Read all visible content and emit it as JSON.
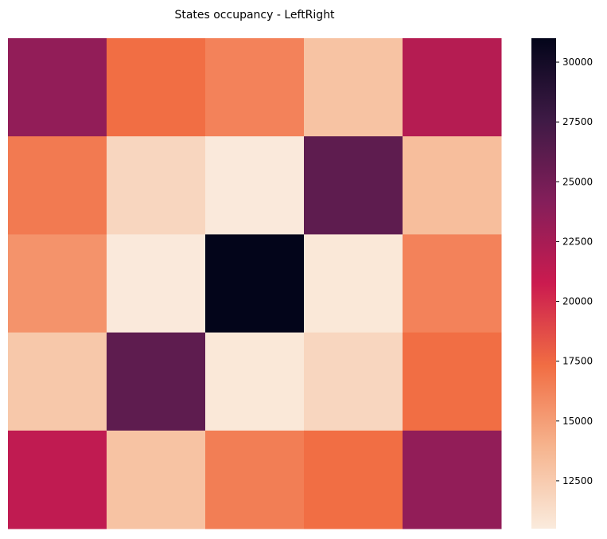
{
  "chart_data": {
    "type": "heatmap",
    "title": "States occupancy - LeftRight",
    "xlabel": "",
    "ylabel": "",
    "rows": 5,
    "cols": 5,
    "values": [
      [
        23500,
        17300,
        16300,
        13000,
        21800
      ],
      [
        16700,
        11800,
        10600,
        26000,
        13300
      ],
      [
        15500,
        10600,
        31000,
        10700,
        16300
      ],
      [
        12700,
        26000,
        10700,
        11800,
        17300
      ],
      [
        21300,
        13000,
        16500,
        17300,
        23500
      ]
    ],
    "colorbar": {
      "min": 10500,
      "max": 31000,
      "ticks": [
        12500,
        15000,
        17500,
        20000,
        22500,
        25000,
        27500,
        30000
      ],
      "tick_labels": [
        "12500",
        "15000",
        "17500",
        "20000",
        "22500",
        "25000",
        "27500",
        "30000"
      ],
      "colormap": "rocket",
      "colormap_stops": [
        "#faebdd",
        "#f6b48e",
        "#f16d43",
        "#cb1b4f",
        "#841e5a",
        "#3e1a45",
        "#03051a"
      ]
    },
    "grid": false,
    "legend": "colorbar-right"
  }
}
